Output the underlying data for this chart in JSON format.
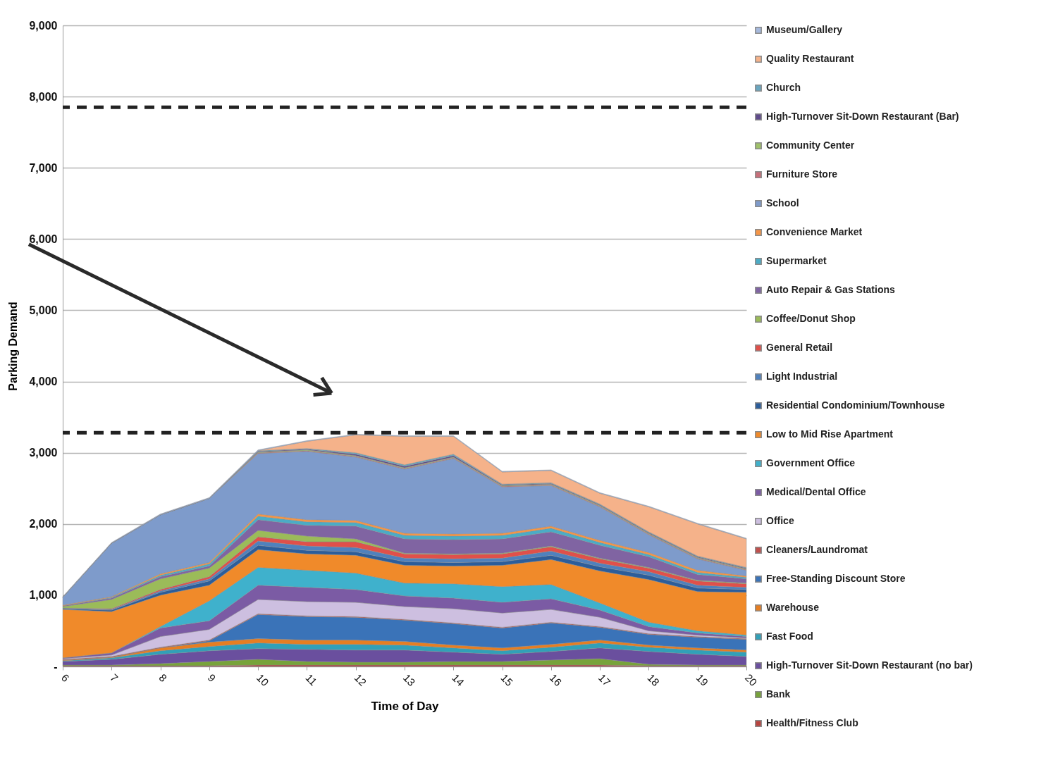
{
  "chart_data": {
    "type": "area",
    "stacked": true,
    "xlabel": "Time of Day",
    "ylabel": "Parking Demand",
    "x": [
      6,
      7,
      8,
      9,
      10,
      11,
      12,
      13,
      14,
      15,
      16,
      17,
      18,
      19,
      20
    ],
    "xlim": [
      6,
      20
    ],
    "xticks": [
      6,
      7,
      8,
      9,
      10,
      11,
      12,
      13,
      14,
      15,
      16,
      17,
      18,
      19,
      20
    ],
    "ylim": [
      0,
      9000
    ],
    "yticks": [
      {
        "value": 0,
        "label": "-"
      },
      {
        "value": 1000,
        "label": "1,000"
      },
      {
        "value": 2000,
        "label": "2,000"
      },
      {
        "value": 3000,
        "label": "3,000"
      },
      {
        "value": 4000,
        "label": "4,000"
      },
      {
        "value": 5000,
        "label": "5,000"
      },
      {
        "value": 6000,
        "label": "6,000"
      },
      {
        "value": 7000,
        "label": "7,000"
      },
      {
        "value": 8000,
        "label": "8,000"
      },
      {
        "value": 9000,
        "label": "9,000"
      }
    ],
    "grid": "y",
    "legend": "right",
    "ref_lines": [
      {
        "axis": "y",
        "value": 7850,
        "color": "#222222",
        "line_style": "dashed"
      },
      {
        "axis": "y",
        "value": 3280,
        "color": "#222222",
        "line_style": "dashed"
      }
    ],
    "series": [
      {
        "name": "Health/Fitness Club",
        "color": "#b8443f",
        "values": [
          10,
          10,
          10,
          10,
          20,
          20,
          20,
          20,
          20,
          20,
          20,
          20,
          10,
          10,
          10
        ]
      },
      {
        "name": "Bank",
        "color": "#77a33a",
        "values": [
          10,
          10,
          30,
          60,
          80,
          50,
          40,
          40,
          50,
          50,
          70,
          90,
          20,
          10,
          10
        ]
      },
      {
        "name": "High-Turnover Sit-Down Restaurant (no bar)",
        "color": "#6a4f9e",
        "values": [
          50,
          80,
          130,
          150,
          150,
          170,
          170,
          170,
          130,
          100,
          120,
          150,
          180,
          150,
          120
        ]
      },
      {
        "name": "Fast Food",
        "color": "#31a0b8",
        "values": [
          10,
          20,
          50,
          60,
          80,
          70,
          80,
          70,
          60,
          50,
          60,
          70,
          60,
          60,
          60
        ]
      },
      {
        "name": "Warehouse",
        "color": "#e67e22",
        "values": [
          10,
          10,
          40,
          60,
          60,
          60,
          60,
          50,
          40,
          40,
          40,
          40,
          30,
          30,
          30
        ]
      },
      {
        "name": "Free-Standing Discount Store",
        "color": "#3a73b8",
        "values": [
          0,
          0,
          0,
          20,
          340,
          330,
          320,
          300,
          300,
          280,
          300,
          180,
          150,
          150,
          150
        ]
      },
      {
        "name": "Cleaners/Laundromat",
        "color": "#c0504d",
        "values": [
          10,
          10,
          10,
          10,
          10,
          10,
          10,
          10,
          10,
          10,
          10,
          10,
          10,
          10,
          10
        ]
      },
      {
        "name": "Office",
        "color": "#cdbfe0",
        "values": [
          10,
          20,
          150,
          150,
          200,
          200,
          200,
          180,
          200,
          200,
          180,
          130,
          40,
          20,
          10
        ]
      },
      {
        "name": "Medical/Dental Office",
        "color": "#7b5ba4",
        "values": [
          10,
          30,
          120,
          120,
          200,
          200,
          180,
          150,
          150,
          150,
          150,
          100,
          60,
          30,
          20
        ]
      },
      {
        "name": "Government Office",
        "color": "#3fb1cc",
        "values": [
          0,
          0,
          20,
          280,
          250,
          240,
          230,
          180,
          200,
          220,
          200,
          100,
          60,
          30,
          20
        ]
      },
      {
        "name": "Low to Mid Rise Apartment",
        "color": "#f08a2a",
        "values": [
          680,
          580,
          440,
          220,
          250,
          230,
          250,
          250,
          250,
          300,
          350,
          450,
          600,
          550,
          600
        ]
      },
      {
        "name": "Residential Condominium/Townhouse",
        "color": "#2c5d9a",
        "values": [
          10,
          20,
          40,
          60,
          60,
          50,
          50,
          50,
          50,
          50,
          60,
          60,
          60,
          50,
          40
        ]
      },
      {
        "name": "Light Industrial",
        "color": "#4f81bd",
        "values": [
          10,
          10,
          20,
          30,
          60,
          60,
          60,
          50,
          50,
          50,
          60,
          50,
          50,
          40,
          30
        ]
      },
      {
        "name": "General Retail",
        "color": "#e0504a",
        "values": [
          0,
          10,
          20,
          30,
          60,
          60,
          80,
          60,
          60,
          60,
          60,
          60,
          50,
          60,
          50
        ]
      },
      {
        "name": "Coffee/Donut Shop",
        "color": "#9bbb59",
        "values": [
          20,
          130,
          150,
          120,
          90,
          80,
          40,
          10,
          10,
          10,
          10,
          10,
          10,
          10,
          10
        ]
      },
      {
        "name": "Auto Repair & Gas Stations",
        "color": "#8064a2",
        "values": [
          10,
          20,
          30,
          30,
          150,
          150,
          180,
          200,
          200,
          200,
          200,
          180,
          150,
          80,
          60
        ]
      },
      {
        "name": "Supermarket",
        "color": "#4bacc6",
        "values": [
          0,
          10,
          20,
          30,
          50,
          50,
          50,
          50,
          50,
          50,
          50,
          40,
          30,
          30,
          20
        ]
      },
      {
        "name": "Convenience Market",
        "color": "#f79646",
        "values": [
          10,
          10,
          20,
          20,
          30,
          30,
          30,
          30,
          30,
          30,
          30,
          30,
          30,
          30,
          20
        ]
      },
      {
        "name": "School",
        "color": "#7e9bcb",
        "values": [
          110,
          750,
          830,
          900,
          850,
          960,
          890,
          900,
          1060,
          650,
          570,
          470,
          250,
          160,
          80
        ]
      },
      {
        "name": "Furniture Store",
        "color": "#c76f7a",
        "values": [
          0,
          0,
          0,
          0,
          10,
          10,
          10,
          10,
          10,
          10,
          10,
          10,
          10,
          10,
          10
        ]
      },
      {
        "name": "Community Center",
        "color": "#9fc16a",
        "values": [
          0,
          0,
          0,
          0,
          10,
          10,
          10,
          10,
          10,
          10,
          10,
          10,
          10,
          10,
          10
        ]
      },
      {
        "name": "High-Turnover Sit-Down Restaurant (Bar)",
        "color": "#5f4b8b",
        "values": [
          0,
          0,
          0,
          0,
          10,
          10,
          20,
          20,
          20,
          10,
          10,
          10,
          10,
          10,
          10
        ]
      },
      {
        "name": "Church",
        "color": "#6aa6bf",
        "values": [
          0,
          0,
          0,
          0,
          10,
          10,
          20,
          20,
          20,
          10,
          10,
          10,
          10,
          10,
          10
        ]
      },
      {
        "name": "Quality Restaurant",
        "color": "#f5b28a",
        "values": [
          0,
          0,
          0,
          0,
          0,
          100,
          250,
          400,
          250,
          170,
          170,
          150,
          350,
          450,
          400
        ]
      },
      {
        "name": "Museum/Gallery",
        "color": "#a6b9dc",
        "values": [
          10,
          10,
          10,
          10,
          10,
          10,
          10,
          10,
          10,
          10,
          10,
          10,
          10,
          10,
          10
        ]
      }
    ]
  }
}
